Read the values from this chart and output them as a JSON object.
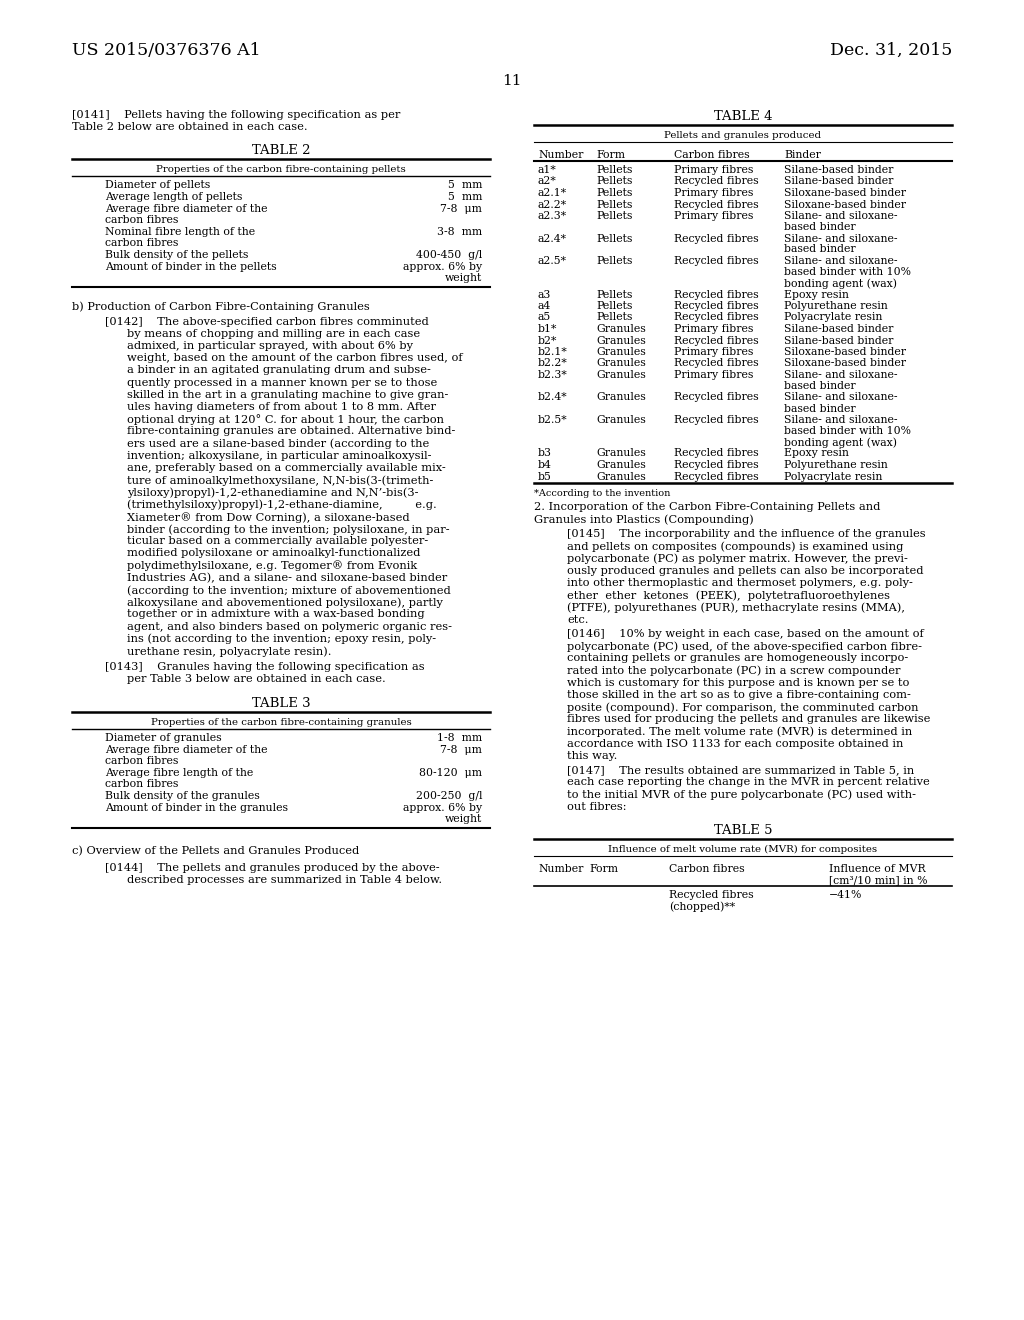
{
  "page_number": "11",
  "patent_number": "US 2015/0376376 A1",
  "patent_date": "Dec. 31, 2015",
  "background_color": "#ffffff",
  "text_color": "#000000",
  "table2_title": "TABLE 2",
  "table2_header": "Properties of the carbon fibre-containing pellets",
  "table2_rows": [
    [
      "Diameter of pellets",
      "5  mm"
    ],
    [
      "Average length of pellets",
      "5  mm"
    ],
    [
      "Average fibre diameter of the\ncarbon fibres",
      "7-8  μm"
    ],
    [
      "Nominal fibre length of the\ncarbon fibres",
      "3-8  mm"
    ],
    [
      "Bulk density of the pellets",
      "400-450  g/l"
    ],
    [
      "Amount of binder in the pellets",
      "approx. 6% by\nweight"
    ]
  ],
  "section_b": "b) Production of Carbon Fibre-Containing Granules",
  "table3_title": "TABLE 3",
  "table3_header": "Properties of the carbon fibre-containing granules",
  "table3_rows": [
    [
      "Diameter of granules",
      "1-8  mm"
    ],
    [
      "Average fibre diameter of the\ncarbon fibres",
      "7-8  μm"
    ],
    [
      "Average fibre length of the\ncarbon fibres",
      "80-120  μm"
    ],
    [
      "Bulk density of the granules",
      "200-250  g/l"
    ],
    [
      "Amount of binder in the granules",
      "approx. 6% by\nweight"
    ]
  ],
  "section_c": "c) Overview of the Pellets and Granules Produced",
  "table4_title": "TABLE 4",
  "table4_subheader": "Pellets and granules produced",
  "table4_col_headers": [
    "Number",
    "Form",
    "Carbon fibres",
    "Binder"
  ],
  "table4_rows": [
    [
      "a1*",
      "Pellets",
      "Primary fibres",
      "Silane-based binder"
    ],
    [
      "a2*",
      "Pellets",
      "Recycled fibres",
      "Silane-based binder"
    ],
    [
      "a2.1*",
      "Pellets",
      "Primary fibres",
      "Siloxane-based binder"
    ],
    [
      "a2.2*",
      "Pellets",
      "Recycled fibres",
      "Siloxane-based binder"
    ],
    [
      "a2.3*",
      "Pellets",
      "Primary fibres",
      "Silane- and siloxane-\nbased binder"
    ],
    [
      "a2.4*",
      "Pellets",
      "Recycled fibres",
      "Silane- and siloxane-\nbased binder"
    ],
    [
      "a2.5*",
      "Pellets",
      "Recycled fibres",
      "Silane- and siloxane-\nbased binder with 10%\nbonding agent (wax)"
    ],
    [
      "a3",
      "Pellets",
      "Recycled fibres",
      "Epoxy resin"
    ],
    [
      "a4",
      "Pellets",
      "Recycled fibres",
      "Polyurethane resin"
    ],
    [
      "a5",
      "Pellets",
      "Recycled fibres",
      "Polyacrylate resin"
    ],
    [
      "b1*",
      "Granules",
      "Primary fibres",
      "Silane-based binder"
    ],
    [
      "b2*",
      "Granules",
      "Recycled fibres",
      "Silane-based binder"
    ],
    [
      "b2.1*",
      "Granules",
      "Primary fibres",
      "Siloxane-based binder"
    ],
    [
      "b2.2*",
      "Granules",
      "Recycled fibres",
      "Siloxane-based binder"
    ],
    [
      "b2.3*",
      "Granules",
      "Primary fibres",
      "Silane- and siloxane-\nbased binder"
    ],
    [
      "b2.4*",
      "Granules",
      "Recycled fibres",
      "Silane- and siloxane-\nbased binder"
    ],
    [
      "b2.5*",
      "Granules",
      "Recycled fibres",
      "Silane- and siloxane-\nbased binder with 10%\nbonding agent (wax)"
    ],
    [
      "b3",
      "Granules",
      "Recycled fibres",
      "Epoxy resin"
    ],
    [
      "b4",
      "Granules",
      "Recycled fibres",
      "Polyurethane resin"
    ],
    [
      "b5",
      "Granules",
      "Recycled fibres",
      "Polyacrylate resin"
    ]
  ],
  "table4_footnote": "*According to the invention",
  "table5_title": "TABLE 5",
  "table5_subheader": "Influence of melt volume rate (MVR) for composites",
  "table5_col_headers": [
    "Number",
    "Form",
    "Carbon fibres",
    "Influence of MVR\n[cm³/10 min] in %"
  ],
  "table5_rows": [
    [
      "",
      "",
      "Recycled fibres\n(chopped)**",
      "−41%"
    ]
  ],
  "left_col_lines_0141": [
    "[0141]    Pellets having the following specification as per",
    "Table 2 below are obtained in each case."
  ],
  "left_col_lines_0142": [
    "[0142]    The above-specified carbon fibres comminuted",
    "by means of chopping and milling are in each case",
    "admixed, in particular sprayed, with about 6% by",
    "weight, based on the amount of the carbon fibres used, of",
    "a binder in an agitated granulating drum and subse-",
    "quently processed in a manner known per se to those",
    "skilled in the art in a granulating machine to give gran-",
    "ules having diameters of from about 1 to 8 mm. After",
    "optional drying at 120° C. for about 1 hour, the carbon",
    "fibre-containing granules are obtained. Alternative bind-",
    "ers used are a silane-based binder (according to the",
    "invention; alkoxysilane, in particular aminoalkoxysil-",
    "ane, preferably based on a commercially available mix-",
    "ture of aminoalkylmethoxysilane, N,N-bis(3-(trimeth-",
    "ylsiloxy)propyl)-1,2-ethanediamine and N,N’-bis(3-",
    "(trimethylsiloxy)propyl)-1,2-ethane-diamine,         e.g.",
    "Xiameter® from Dow Corning), a siloxane-based",
    "binder (according to the invention; polysiloxane, in par-",
    "ticular based on a commercially available polyester-",
    "modified polysiloxane or aminoalkyl-functionalized",
    "polydimethylsiloxane, e.g. Tegomer® from Evonik",
    "Industries AG), and a silane- and siloxane-based binder",
    "(according to the invention; mixture of abovementioned",
    "alkoxysilane and abovementioned polysiloxane), partly",
    "together or in admixture with a wax-based bonding",
    "agent, and also binders based on polymeric organic res-",
    "ins (not according to the invention; epoxy resin, poly-",
    "urethane resin, polyacrylate resin)."
  ],
  "left_col_lines_0143": [
    "[0143]    Granules having the following specification as",
    "per Table 3 below are obtained in each case."
  ],
  "left_col_lines_0144": [
    "[0144]    The pellets and granules produced by the above-",
    "described processes are summarized in Table 4 below."
  ],
  "right_col_lines_section2": [
    "2. Incorporation of the Carbon Fibre-Containing Pellets and",
    "Granules into Plastics (Compounding)"
  ],
  "right_col_lines_0145": [
    "[0145]    The incorporability and the influence of the granules",
    "and pellets on composites (compounds) is examined using",
    "polycarbonate (PC) as polymer matrix. However, the previ-",
    "ously produced granules and pellets can also be incorporated",
    "into other thermoplastic and thermoset polymers, e.g. poly-",
    "ether  ether  ketones  (PEEK),  polytetrafluoroethylenes",
    "(PTFE), polyurethanes (PUR), methacrylate resins (MMA),",
    "etc."
  ],
  "right_col_lines_0146": [
    "[0146]    10% by weight in each case, based on the amount of",
    "polycarbonate (PC) used, of the above-specified carbon fibre-",
    "containing pellets or granules are homogeneously incorpo-",
    "rated into the polycarbonate (PC) in a screw compounder",
    "which is customary for this purpose and is known per se to",
    "those skilled in the art so as to give a fibre-containing com-",
    "posite (compound). For comparison, the comminuted carbon",
    "fibres used for producing the pellets and granules are likewise",
    "incorporated. The melt volume rate (MVR) is determined in",
    "accordance with ISO 1133 for each composite obtained in",
    "this way."
  ],
  "right_col_lines_0147": [
    "[0147]    The results obtained are summarized in Table 5, in",
    "each case reporting the change in the MVR in percent relative",
    "to the initial MVR of the pure polycarbonate (PC) used with-",
    "out fibres:"
  ]
}
